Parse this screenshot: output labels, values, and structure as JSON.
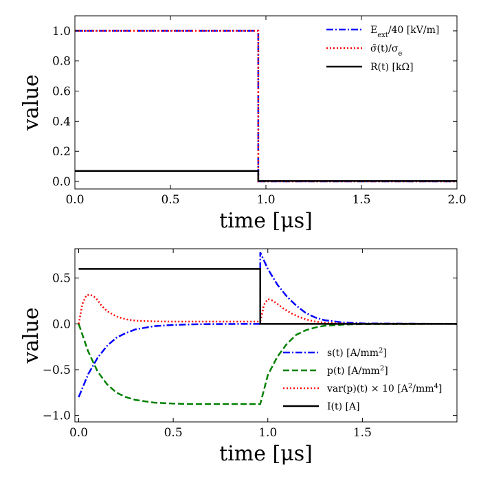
{
  "chart_data": [
    {
      "type": "line",
      "xlabel": "time [μs]",
      "ylabel": "value",
      "xlim": [
        0.0,
        2.0
      ],
      "ylim": [
        -0.05,
        1.1
      ],
      "xticks": [
        0.0,
        0.5,
        1.0,
        1.5,
        2.0
      ],
      "xtick_labels": [
        "0.0",
        "0.5",
        "1.0",
        "1.5",
        "2.0"
      ],
      "yticks": [
        0.0,
        0.2,
        0.4,
        0.6,
        0.8,
        1.0
      ],
      "ytick_labels": [
        "0.0",
        "0.2",
        "0.4",
        "0.6",
        "0.8",
        "1.0"
      ],
      "legend_position": "top-right",
      "series": [
        {
          "name": "E_ext/40 [kV/m]",
          "label_main": "E",
          "label_sub": "ext",
          "label_rest": "/40 [kV/m]",
          "color": "#0000ff",
          "style": "dashdot",
          "x": [
            0.0,
            0.96,
            0.96,
            2.0
          ],
          "y": [
            1.0,
            1.0,
            0.0,
            0.0
          ]
        },
        {
          "name": "σ̄(t)/σ_e",
          "label_main": "σ̄(t)/σ",
          "label_sub": "e",
          "label_rest": "",
          "color": "#ff0000",
          "style": "dotted",
          "x": [
            0.0,
            0.96,
            0.96,
            2.0
          ],
          "y": [
            1.0,
            1.0,
            0.0,
            0.0
          ]
        },
        {
          "name": "R(t) [kΩ]",
          "label_main": "R(t) [kΩ]",
          "label_sub": "",
          "label_rest": "",
          "color": "#000000",
          "style": "solid",
          "x": [
            0.0,
            0.96,
            0.96,
            2.0
          ],
          "y": [
            0.07,
            0.07,
            0.003,
            0.003
          ]
        }
      ]
    },
    {
      "type": "line",
      "xlabel": "time [μs]",
      "ylabel": "value",
      "xlim": [
        -0.02,
        2.0
      ],
      "ylim": [
        -1.07,
        0.82
      ],
      "xticks": [
        0.0,
        0.5,
        1.0,
        1.5
      ],
      "xtick_labels": [
        "0.0",
        "0.5",
        "1.0",
        "1.5"
      ],
      "yticks": [
        -1.0,
        -0.5,
        0.0,
        0.5
      ],
      "ytick_labels": [
        "−1.0",
        "−0.5",
        "0.0",
        "0.5"
      ],
      "legend_position": "lower-right",
      "series": [
        {
          "name": "s(t) [A/mm²]",
          "label_main": "s(t) [A/mm",
          "label_sup": "2",
          "label_rest": "]",
          "color": "#0000ff",
          "style": "dashdot",
          "x": [
            0.0,
            0.05,
            0.1,
            0.15,
            0.2,
            0.25,
            0.3,
            0.4,
            0.5,
            0.6,
            0.7,
            0.8,
            0.96,
            0.96,
            1.0,
            1.05,
            1.1,
            1.15,
            1.2,
            1.25,
            1.3,
            1.4,
            1.5,
            2.0
          ],
          "y": [
            -0.8,
            -0.55,
            -0.37,
            -0.24,
            -0.15,
            -0.1,
            -0.06,
            -0.025,
            -0.012,
            -0.005,
            -0.002,
            -0.001,
            0.0,
            0.78,
            0.6,
            0.43,
            0.3,
            0.2,
            0.12,
            0.07,
            0.04,
            0.015,
            0.005,
            0.0
          ]
        },
        {
          "name": "p(t) [A/mm²]",
          "label_main": "p(t) [A/mm",
          "label_sup": "2",
          "label_rest": "]",
          "color": "#008000",
          "style": "dashed",
          "x": [
            0.0,
            0.05,
            0.1,
            0.15,
            0.2,
            0.25,
            0.3,
            0.4,
            0.5,
            0.6,
            0.7,
            0.8,
            0.96,
            0.96,
            1.0,
            1.05,
            1.1,
            1.15,
            1.2,
            1.25,
            1.3,
            1.4,
            1.5,
            2.0
          ],
          "y": [
            0.0,
            -0.3,
            -0.52,
            -0.66,
            -0.75,
            -0.8,
            -0.83,
            -0.86,
            -0.87,
            -0.875,
            -0.875,
            -0.875,
            -0.875,
            -0.875,
            -0.56,
            -0.36,
            -0.22,
            -0.12,
            -0.07,
            -0.04,
            -0.02,
            -0.008,
            -0.002,
            0.0
          ]
        },
        {
          "name": "var(p)(t) × 10 [A²/mm⁴]",
          "label_main": "var(p)(t) × 10 [A",
          "label_sup": "2",
          "label_rest": "/mm",
          "label_sup2": "4",
          "label_rest2": "]",
          "color": "#ff0000",
          "style": "dotted",
          "x": [
            0.0,
            0.02,
            0.04,
            0.06,
            0.08,
            0.1,
            0.12,
            0.15,
            0.2,
            0.25,
            0.3,
            0.4,
            0.5,
            0.6,
            0.8,
            0.96,
            0.96,
            0.98,
            1.0,
            1.02,
            1.05,
            1.08,
            1.12,
            1.16,
            1.2,
            1.25,
            1.3,
            1.4,
            1.5,
            2.0
          ],
          "y": [
            0.0,
            0.22,
            0.31,
            0.32,
            0.3,
            0.26,
            0.2,
            0.14,
            0.08,
            0.05,
            0.035,
            0.027,
            0.025,
            0.025,
            0.025,
            0.025,
            0.025,
            0.21,
            0.27,
            0.26,
            0.22,
            0.17,
            0.12,
            0.08,
            0.05,
            0.025,
            0.012,
            0.003,
            0.0,
            0.0
          ]
        },
        {
          "name": "I(t) [A]",
          "label_main": "I(t) [A]",
          "label_sup": "",
          "label_rest": "",
          "color": "#000000",
          "style": "solid",
          "x": [
            0.0,
            0.96,
            0.96,
            2.0
          ],
          "y": [
            0.6,
            0.6,
            0.0,
            0.0
          ]
        }
      ]
    }
  ]
}
